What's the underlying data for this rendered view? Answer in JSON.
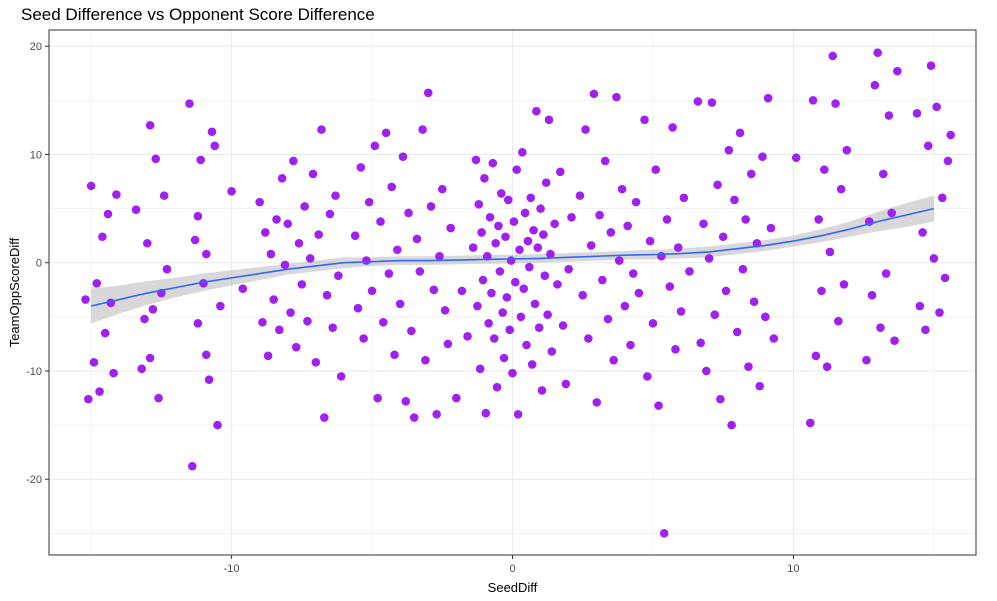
{
  "chart_data": {
    "type": "scatter",
    "title": "Seed Difference vs Opponent Score Difference",
    "xlabel": "SeedDiff",
    "ylabel": "TeamOppScoreDiff",
    "xlim": [
      -16.5,
      16.5
    ],
    "ylim": [
      -27.0,
      21.5
    ],
    "x_ticks": [
      -10,
      0,
      10
    ],
    "x_tick_labels": [
      "-10",
      "0",
      "10"
    ],
    "y_ticks": [
      -20,
      -10,
      0,
      10,
      20
    ],
    "y_tick_labels": [
      "-20",
      "-10",
      "0",
      "10",
      "20"
    ],
    "grid": true,
    "legend": "none",
    "colors": {
      "points": "#a020f0",
      "smooth": "#3366ff",
      "band": "#bebebe",
      "panel_border": "#333333",
      "grid": "#ebebeb"
    },
    "points": [
      [
        -15.2,
        -3.4
      ],
      [
        -15.1,
        -12.6
      ],
      [
        -15.0,
        7.1
      ],
      [
        -14.9,
        -9.2
      ],
      [
        -14.8,
        -1.9
      ],
      [
        -14.7,
        -11.9
      ],
      [
        -14.6,
        2.4
      ],
      [
        -14.5,
        -6.5
      ],
      [
        -14.4,
        4.5
      ],
      [
        -14.3,
        -3.7
      ],
      [
        -14.2,
        -10.2
      ],
      [
        -14.1,
        6.3
      ],
      [
        -13.4,
        4.9
      ],
      [
        -13.2,
        -9.8
      ],
      [
        -13.0,
        1.8
      ],
      [
        -12.9,
        12.7
      ],
      [
        -12.8,
        -4.3
      ],
      [
        -12.7,
        9.6
      ],
      [
        -12.6,
        -12.5
      ],
      [
        -12.5,
        -2.8
      ],
      [
        -12.4,
        6.2
      ],
      [
        -12.9,
        -8.8
      ],
      [
        -13.1,
        -5.2
      ],
      [
        -12.3,
        -0.6
      ],
      [
        -11.5,
        14.7
      ],
      [
        -11.4,
        -18.8
      ],
      [
        -11.3,
        2.1
      ],
      [
        -11.2,
        -5.6
      ],
      [
        -11.1,
        9.5
      ],
      [
        -11.0,
        -1.9
      ],
      [
        -10.9,
        -8.5
      ],
      [
        -10.8,
        -10.8
      ],
      [
        -10.7,
        12.1
      ],
      [
        -10.6,
        10.8
      ],
      [
        -10.5,
        -15.0
      ],
      [
        -10.4,
        -4.0
      ],
      [
        -11.2,
        4.3
      ],
      [
        -10.9,
        0.8
      ],
      [
        -10.0,
        6.6
      ],
      [
        -9.6,
        -2.4
      ],
      [
        -9.0,
        5.6
      ],
      [
        -8.9,
        -5.5
      ],
      [
        -8.8,
        2.8
      ],
      [
        -8.7,
        -8.6
      ],
      [
        -8.6,
        0.8
      ],
      [
        -8.5,
        -3.4
      ],
      [
        -8.4,
        4.0
      ],
      [
        -8.3,
        -6.2
      ],
      [
        -8.2,
        7.8
      ],
      [
        -8.1,
        -0.2
      ],
      [
        -8.0,
        3.6
      ],
      [
        -7.9,
        -4.6
      ],
      [
        -7.8,
        9.4
      ],
      [
        -7.7,
        -7.8
      ],
      [
        -7.6,
        1.8
      ],
      [
        -7.5,
        -2.0
      ],
      [
        -7.4,
        5.2
      ],
      [
        -7.3,
        -5.4
      ],
      [
        -7.2,
        0.4
      ],
      [
        -7.1,
        8.2
      ],
      [
        -7.0,
        -9.2
      ],
      [
        -6.9,
        2.6
      ],
      [
        -6.8,
        12.3
      ],
      [
        -6.7,
        -14.3
      ],
      [
        -6.6,
        -3.0
      ],
      [
        -6.5,
        4.5
      ],
      [
        -6.4,
        -6.0
      ],
      [
        -6.3,
        6.2
      ],
      [
        -6.2,
        -1.2
      ],
      [
        -6.1,
        -10.5
      ],
      [
        -5.6,
        2.5
      ],
      [
        -5.5,
        -4.2
      ],
      [
        -5.4,
        8.8
      ],
      [
        -5.3,
        -7.0
      ],
      [
        -5.2,
        0.2
      ],
      [
        -5.1,
        5.6
      ],
      [
        -5.0,
        -2.6
      ],
      [
        -4.9,
        10.8
      ],
      [
        -4.8,
        -12.5
      ],
      [
        -4.7,
        3.8
      ],
      [
        -4.6,
        -5.5
      ],
      [
        -4.5,
        12.0
      ],
      [
        -4.4,
        -1.0
      ],
      [
        -4.3,
        7.0
      ],
      [
        -4.2,
        -8.5
      ],
      [
        -4.1,
        1.2
      ],
      [
        -4.0,
        -3.8
      ],
      [
        -3.9,
        9.8
      ],
      [
        -3.8,
        -12.8
      ],
      [
        -3.7,
        4.6
      ],
      [
        -3.6,
        -6.3
      ],
      [
        -3.5,
        -14.3
      ],
      [
        -3.4,
        2.2
      ],
      [
        -3.3,
        -0.8
      ],
      [
        -3.2,
        12.3
      ],
      [
        -3.1,
        -9.0
      ],
      [
        -3.0,
        15.7
      ],
      [
        -2.9,
        5.2
      ],
      [
        -2.8,
        -2.5
      ],
      [
        -2.7,
        -14.0
      ],
      [
        -2.6,
        0.6
      ],
      [
        -2.5,
        6.8
      ],
      [
        -2.4,
        -4.4
      ],
      [
        -2.3,
        -7.5
      ],
      [
        -2.2,
        3.2
      ],
      [
        -2.0,
        -12.5
      ],
      [
        -1.8,
        -2.6
      ],
      [
        -1.6,
        -6.8
      ],
      [
        -1.4,
        1.4
      ],
      [
        -1.3,
        9.5
      ],
      [
        -1.25,
        -4.0
      ],
      [
        -1.2,
        5.4
      ],
      [
        -1.15,
        -9.8
      ],
      [
        -1.1,
        2.8
      ],
      [
        -1.05,
        -1.6
      ],
      [
        -1.0,
        7.8
      ],
      [
        -0.95,
        -13.9
      ],
      [
        -0.9,
        0.6
      ],
      [
        -0.85,
        -5.6
      ],
      [
        -0.8,
        4.2
      ],
      [
        -0.75,
        -2.8
      ],
      [
        -0.7,
        9.2
      ],
      [
        -0.65,
        -7.0
      ],
      [
        -0.6,
        1.8
      ],
      [
        -0.55,
        -11.5
      ],
      [
        -0.5,
        3.4
      ],
      [
        -0.45,
        -0.8
      ],
      [
        -0.4,
        6.4
      ],
      [
        -0.35,
        -4.6
      ],
      [
        -0.3,
        -8.8
      ],
      [
        -0.25,
        2.4
      ],
      [
        -0.2,
        -3.2
      ],
      [
        -0.15,
        5.8
      ],
      [
        -0.1,
        -6.2
      ],
      [
        -0.05,
        0.2
      ],
      [
        0.0,
        -10.2
      ],
      [
        0.05,
        3.8
      ],
      [
        0.1,
        -1.8
      ],
      [
        0.15,
        8.6
      ],
      [
        0.2,
        -14.0
      ],
      [
        0.25,
        1.2
      ],
      [
        0.3,
        -5.0
      ],
      [
        0.35,
        10.2
      ],
      [
        0.4,
        -2.4
      ],
      [
        0.45,
        4.6
      ],
      [
        0.5,
        -7.6
      ],
      [
        0.55,
        2.0
      ],
      [
        0.6,
        -0.4
      ],
      [
        0.65,
        6.0
      ],
      [
        0.7,
        -9.4
      ],
      [
        0.75,
        3.0
      ],
      [
        0.8,
        -3.8
      ],
      [
        0.85,
        14.0
      ],
      [
        0.9,
        1.4
      ],
      [
        0.95,
        -6.0
      ],
      [
        1.0,
        5.0
      ],
      [
        1.05,
        -11.8
      ],
      [
        1.1,
        2.6
      ],
      [
        1.15,
        -1.2
      ],
      [
        1.2,
        7.4
      ],
      [
        1.25,
        -4.8
      ],
      [
        1.3,
        13.2
      ],
      [
        1.35,
        0.8
      ],
      [
        1.4,
        -8.2
      ],
      [
        1.5,
        3.6
      ],
      [
        1.6,
        -2.0
      ],
      [
        1.7,
        8.4
      ],
      [
        1.8,
        -5.8
      ],
      [
        1.9,
        -11.2
      ],
      [
        2.0,
        -0.6
      ],
      [
        2.1,
        4.2
      ],
      [
        2.4,
        6.2
      ],
      [
        2.5,
        -3.0
      ],
      [
        2.6,
        12.3
      ],
      [
        2.7,
        -7.0
      ],
      [
        2.8,
        1.6
      ],
      [
        2.9,
        15.6
      ],
      [
        3.0,
        -12.9
      ],
      [
        3.1,
        4.4
      ],
      [
        3.2,
        -1.6
      ],
      [
        3.3,
        9.4
      ],
      [
        3.4,
        -5.2
      ],
      [
        3.5,
        2.8
      ],
      [
        3.6,
        -9.0
      ],
      [
        3.7,
        15.3
      ],
      [
        3.8,
        0.2
      ],
      [
        3.9,
        6.8
      ],
      [
        4.0,
        -4.0
      ],
      [
        4.1,
        3.4
      ],
      [
        4.2,
        -7.6
      ],
      [
        4.3,
        -1.0
      ],
      [
        4.4,
        5.6
      ],
      [
        4.5,
        -2.8
      ],
      [
        4.7,
        13.2
      ],
      [
        4.8,
        -10.5
      ],
      [
        4.9,
        2.0
      ],
      [
        5.0,
        -5.6
      ],
      [
        5.1,
        8.6
      ],
      [
        5.2,
        -13.2
      ],
      [
        5.3,
        0.6
      ],
      [
        5.4,
        -25.0
      ],
      [
        5.5,
        4.0
      ],
      [
        5.6,
        -2.2
      ],
      [
        5.7,
        12.5
      ],
      [
        5.8,
        -8.0
      ],
      [
        5.9,
        1.4
      ],
      [
        6.0,
        -4.5
      ],
      [
        6.1,
        6.0
      ],
      [
        6.3,
        -0.8
      ],
      [
        6.6,
        14.9
      ],
      [
        6.7,
        -7.4
      ],
      [
        6.8,
        3.6
      ],
      [
        6.9,
        -10.0
      ],
      [
        7.0,
        0.4
      ],
      [
        7.1,
        14.8
      ],
      [
        7.2,
        -4.8
      ],
      [
        7.3,
        7.2
      ],
      [
        7.4,
        -12.6
      ],
      [
        7.5,
        2.4
      ],
      [
        7.6,
        -2.6
      ],
      [
        7.7,
        10.4
      ],
      [
        7.8,
        -15.0
      ],
      [
        7.9,
        5.8
      ],
      [
        8.0,
        -6.4
      ],
      [
        8.1,
        12.0
      ],
      [
        8.2,
        -0.6
      ],
      [
        8.3,
        4.0
      ],
      [
        8.4,
        -9.6
      ],
      [
        8.5,
        8.2
      ],
      [
        8.6,
        -3.6
      ],
      [
        8.7,
        1.8
      ],
      [
        8.8,
        -11.4
      ],
      [
        8.9,
        9.8
      ],
      [
        9.0,
        -5.0
      ],
      [
        9.1,
        15.2
      ],
      [
        9.2,
        3.2
      ],
      [
        9.3,
        -7.0
      ],
      [
        10.1,
        9.7
      ],
      [
        10.6,
        -14.8
      ],
      [
        10.7,
        15.0
      ],
      [
        10.8,
        -8.6
      ],
      [
        10.9,
        4.0
      ],
      [
        11.0,
        -2.6
      ],
      [
        11.1,
        8.6
      ],
      [
        11.2,
        -9.6
      ],
      [
        11.3,
        1.0
      ],
      [
        11.4,
        19.1
      ],
      [
        11.5,
        14.7
      ],
      [
        11.6,
        -5.4
      ],
      [
        11.7,
        6.8
      ],
      [
        11.8,
        -2.0
      ],
      [
        11.9,
        10.4
      ],
      [
        12.6,
        -9.0
      ],
      [
        12.7,
        3.8
      ],
      [
        12.8,
        -3.0
      ],
      [
        12.9,
        16.4
      ],
      [
        13.0,
        19.4
      ],
      [
        13.1,
        -6.0
      ],
      [
        13.2,
        8.2
      ],
      [
        13.3,
        -1.0
      ],
      [
        13.4,
        13.6
      ],
      [
        13.5,
        4.6
      ],
      [
        13.6,
        -7.2
      ],
      [
        13.7,
        17.7
      ],
      [
        14.4,
        13.8
      ],
      [
        14.5,
        -4.0
      ],
      [
        14.6,
        2.8
      ],
      [
        14.7,
        -6.2
      ],
      [
        14.8,
        10.8
      ],
      [
        14.9,
        18.2
      ],
      [
        15.0,
        0.4
      ],
      [
        15.1,
        14.4
      ],
      [
        15.2,
        -4.6
      ],
      [
        15.3,
        6.0
      ],
      [
        15.4,
        -1.4
      ],
      [
        15.5,
        9.4
      ],
      [
        15.6,
        11.8
      ]
    ],
    "smooth_curve": [
      [
        -15,
        -4.0
      ],
      [
        -14,
        -3.4
      ],
      [
        -13,
        -2.8
      ],
      [
        -12,
        -2.3
      ],
      [
        -11,
        -1.8
      ],
      [
        -10,
        -1.4
      ],
      [
        -9,
        -1.0
      ],
      [
        -8,
        -0.6
      ],
      [
        -7,
        -0.3
      ],
      [
        -6,
        0.0
      ],
      [
        -5,
        0.1
      ],
      [
        -4,
        0.2
      ],
      [
        -3,
        0.2
      ],
      [
        -2,
        0.25
      ],
      [
        -1,
        0.3
      ],
      [
        0,
        0.35
      ],
      [
        1,
        0.4
      ],
      [
        2,
        0.5
      ],
      [
        3,
        0.6
      ],
      [
        4,
        0.7
      ],
      [
        5,
        0.75
      ],
      [
        6,
        0.85
      ],
      [
        7,
        1.0
      ],
      [
        8,
        1.3
      ],
      [
        9,
        1.6
      ],
      [
        10,
        2.0
      ],
      [
        11,
        2.5
      ],
      [
        12,
        3.1
      ],
      [
        13,
        3.8
      ],
      [
        14,
        4.4
      ],
      [
        15,
        5.0
      ]
    ],
    "smooth_band": [
      [
        -15,
        -5.6,
        -2.4
      ],
      [
        -14,
        -4.7,
        -2.1
      ],
      [
        -13,
        -3.9,
        -1.7
      ],
      [
        -12,
        -3.2,
        -1.4
      ],
      [
        -11,
        -2.6,
        -1.0
      ],
      [
        -10,
        -2.1,
        -0.7
      ],
      [
        -9,
        -1.6,
        -0.4
      ],
      [
        -8,
        -1.1,
        -0.1
      ],
      [
        -7,
        -0.8,
        0.2
      ],
      [
        -6,
        -0.5,
        0.5
      ],
      [
        -5,
        -0.3,
        0.5
      ],
      [
        -4,
        -0.2,
        0.6
      ],
      [
        -3,
        -0.2,
        0.6
      ],
      [
        -2,
        -0.15,
        0.65
      ],
      [
        -1,
        -0.1,
        0.7
      ],
      [
        0,
        -0.05,
        0.75
      ],
      [
        1,
        0.0,
        0.8
      ],
      [
        2,
        0.1,
        0.9
      ],
      [
        3,
        0.2,
        1.0
      ],
      [
        4,
        0.3,
        1.1
      ],
      [
        5,
        0.3,
        1.2
      ],
      [
        6,
        0.4,
        1.3
      ],
      [
        7,
        0.5,
        1.5
      ],
      [
        8,
        0.8,
        1.8
      ],
      [
        9,
        1.1,
        2.1
      ],
      [
        10,
        1.5,
        2.5
      ],
      [
        11,
        1.9,
        3.1
      ],
      [
        12,
        2.4,
        3.8
      ],
      [
        13,
        2.9,
        4.7
      ],
      [
        14,
        3.3,
        5.5
      ],
      [
        15,
        3.8,
        6.2
      ]
    ]
  }
}
